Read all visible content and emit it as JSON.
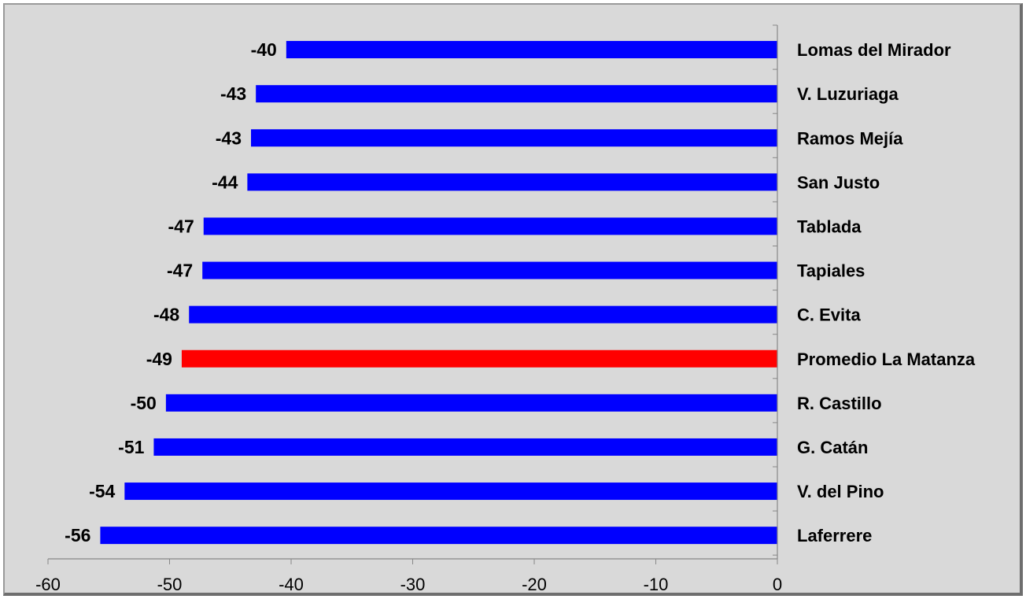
{
  "chart_data": {
    "type": "bar",
    "orientation": "horizontal",
    "categories": [
      "Lomas del Mirador",
      "V. Luzuriaga",
      "Ramos Mejía",
      "San Justo",
      "Tablada",
      "Tapiales",
      "C. Evita",
      "Promedio La Matanza",
      "R. Castillo",
      "G. Catán",
      "V. del Pino",
      "Laferrere"
    ],
    "values": [
      -40.4,
      -42.9,
      -43.3,
      -43.6,
      -47.2,
      -47.3,
      -48.4,
      -49,
      -50.3,
      -51.3,
      -53.7,
      -55.7
    ],
    "value_labels": [
      "-40",
      "-43",
      "-43",
      "-44",
      "-47",
      "-47",
      "-48",
      "-49",
      "-50",
      "-51",
      "-54",
      "-56"
    ],
    "highlight_category": "Promedio La Matanza",
    "colors": {
      "bar": "#0000ff",
      "highlight": "#ff0000",
      "background": "#d9d9d9"
    },
    "xlim": [
      -60,
      0
    ],
    "xticks": [
      -60,
      -50,
      -40,
      -30,
      -20,
      -10,
      0
    ],
    "tick_labels": [
      "-60",
      "-50",
      "-40",
      "-30",
      "-20",
      "-10",
      "0"
    ],
    "title": "",
    "xlabel": "",
    "ylabel": "",
    "grid": false,
    "legend": "none",
    "category_labels_side": "right"
  }
}
